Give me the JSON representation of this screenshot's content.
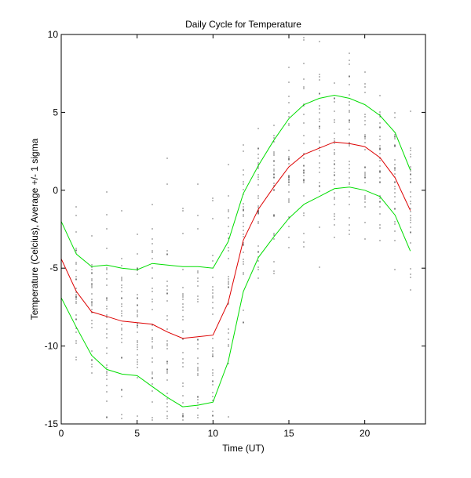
{
  "chart_data": {
    "type": "line",
    "title": "Daily Cycle for Temperature",
    "xlabel": "Time (UT)",
    "ylabel": "Temperature (Celcius), Average +/- 1 sigma",
    "xlim": [
      0,
      24
    ],
    "ylim": [
      -15,
      10
    ],
    "xticks": [
      0,
      5,
      10,
      15,
      20
    ],
    "yticks": [
      -15,
      -10,
      -5,
      0,
      5,
      10
    ],
    "grid": false,
    "colors": {
      "mean": "#dd0000",
      "sigma": "#00dd00",
      "obs": "#000000",
      "axes": "#000000",
      "background": "#ffffff"
    },
    "x": [
      0,
      1,
      2,
      3,
      4,
      5,
      6,
      7,
      8,
      9,
      10,
      11,
      12,
      13,
      14,
      15,
      16,
      17,
      18,
      19,
      20,
      21,
      22,
      23
    ],
    "series": [
      {
        "name": "Average + 1 sigma",
        "role": "sigma",
        "values": [
          -2.0,
          -4.1,
          -4.9,
          -4.8,
          -5.0,
          -5.1,
          -4.7,
          -4.8,
          -4.9,
          -4.9,
          -5.0,
          -3.3,
          -0.2,
          1.6,
          3.2,
          4.6,
          5.5,
          5.9,
          6.1,
          5.9,
          5.5,
          4.8,
          3.7,
          1.3
        ]
      },
      {
        "name": "Average",
        "role": "mean",
        "values": [
          -4.4,
          -6.5,
          -7.8,
          -8.1,
          -8.4,
          -8.5,
          -8.6,
          -9.1,
          -9.5,
          -9.4,
          -9.3,
          -7.2,
          -3.2,
          -1.2,
          0.2,
          1.5,
          2.3,
          2.7,
          3.1,
          3.0,
          2.8,
          2.1,
          0.8,
          -1.3
        ]
      },
      {
        "name": "Average - 1 sigma",
        "role": "sigma",
        "values": [
          -6.9,
          -8.8,
          -10.6,
          -11.5,
          -11.8,
          -11.9,
          -12.6,
          -13.3,
          -13.9,
          -13.8,
          -13.6,
          -11.0,
          -6.5,
          -4.3,
          -3.0,
          -1.8,
          -0.9,
          -0.4,
          0.1,
          0.2,
          0.0,
          -0.4,
          -1.6,
          -3.9
        ]
      }
    ]
  }
}
